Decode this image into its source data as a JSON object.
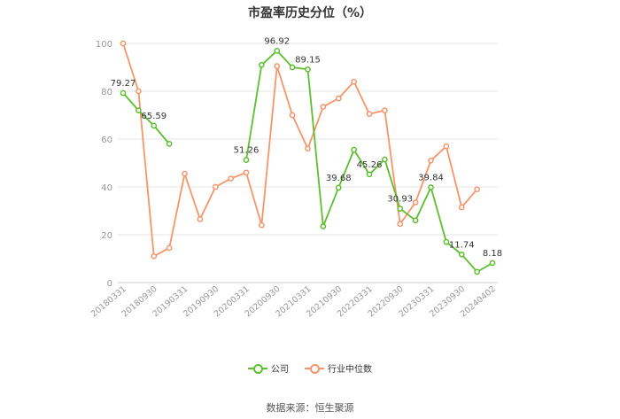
{
  "title": "市盈率历史分位（%）",
  "source": "数据来源：恒生聚源",
  "legend": {
    "company": "公司",
    "industry": "行业中位数"
  },
  "colors": {
    "company": "#5cc02d",
    "industry": "#f7956a",
    "grid": "#e6e6e6",
    "axis_text": "#999999",
    "label": "#333333"
  },
  "chart_data": {
    "type": "line",
    "title": "市盈率历史分位（%）",
    "ylim": [
      0,
      100
    ],
    "yticks": [
      0,
      20,
      40,
      60,
      80,
      100
    ],
    "grid": true,
    "legend_position": "bottom",
    "x": [
      "20180331",
      "20180630",
      "20180930",
      "20181231",
      "20190331",
      "20190630",
      "20190930",
      "20191231",
      "20200331",
      "20200630",
      "20200930",
      "20201231",
      "20210331",
      "20210630",
      "20210930",
      "20211231",
      "20220331",
      "20220630",
      "20220930",
      "20221231",
      "20230331",
      "20230630",
      "20230930",
      "20231231",
      "20240402"
    ],
    "x_tick_labels": [
      "20180331",
      "",
      "20180930",
      "",
      "20190331",
      "",
      "20190930",
      "",
      "20200331",
      "",
      "20200930",
      "",
      "20210331",
      "",
      "20210930",
      "",
      "20220331",
      "",
      "20220930",
      "",
      "20230331",
      "",
      "20230930",
      "",
      "20240402"
    ],
    "series": [
      {
        "name": "公司",
        "values": [
          79.27,
          72,
          65.59,
          58,
          null,
          null,
          null,
          null,
          51.26,
          91,
          96.92,
          90,
          89.15,
          23.5,
          39.68,
          55.5,
          45.26,
          51.5,
          30.93,
          26,
          39.84,
          17,
          11.74,
          4.5,
          8.18
        ],
        "labels": [
          "79.27",
          "",
          "65.59",
          "",
          "",
          "",
          "",
          "",
          "51.26",
          "",
          "96.92",
          "",
          "89.15",
          "",
          "39.68",
          "",
          "45.26",
          "",
          "30.93",
          "",
          "39.84",
          "",
          "11.74",
          "",
          "8.18"
        ]
      },
      {
        "name": "行业中位数",
        "values": [
          100,
          80,
          11,
          14.5,
          45.5,
          26.5,
          40,
          43.5,
          46,
          24,
          90.5,
          70,
          56,
          73.5,
          77,
          84,
          70.5,
          72,
          24.5,
          33.5,
          51,
          57,
          31.5,
          39,
          null
        ]
      }
    ]
  }
}
